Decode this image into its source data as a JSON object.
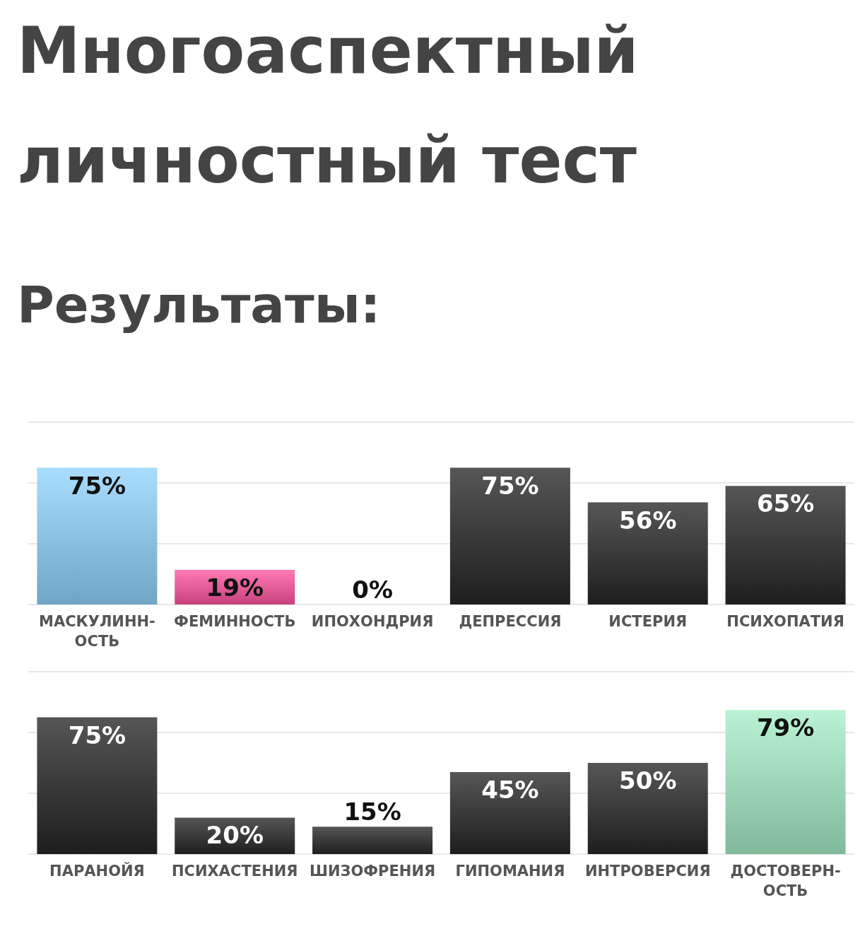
{
  "chart_data": [
    {
      "type": "bar",
      "title": "Многоаспектный личностный тест",
      "subtitle": "Результаты:",
      "categories": [
        "МАСКУЛИНН-ОСТЬ",
        "ФЕМИННОСТЬ",
        "ИПОХОНДРИЯ",
        "ДЕПРЕССИЯ",
        "ИСТЕРИЯ",
        "ПСИХОПАТИЯ"
      ],
      "values": [
        75,
        19,
        0,
        75,
        56,
        65
      ],
      "colors": [
        "#8fd3fc",
        "#ff539f",
        "#262626",
        "#262626",
        "#262626",
        "#262626"
      ],
      "value_labels": [
        "75%",
        "19%",
        "0%",
        "75%",
        "56%",
        "65%"
      ],
      "ylim": [
        0,
        100
      ],
      "yticks": [
        {
          "value": 0,
          "label": null
        },
        {
          "value": 33.3,
          "label": null
        },
        {
          "value": 66.7,
          "label": null
        },
        {
          "value": 100,
          "label": null
        }
      ],
      "grid": "y",
      "tick_labels": "x"
    },
    {
      "type": "bar",
      "categories": [
        "ПАРАНОЙЯ",
        "ПСИХАСТЕНИЯ",
        "ШИЗОФРЕНИЯ",
        "ГИПОМАНИЯ",
        "ИНТРОВЕРСИЯ",
        "ДОСТОВЕРН-ОСТЬ"
      ],
      "values": [
        75,
        20,
        15,
        45,
        50,
        79
      ],
      "colors": [
        "#262626",
        "#262626",
        "#262626",
        "#262626",
        "#262626",
        "#a6efc6"
      ],
      "value_labels": [
        "75%",
        "20%",
        "15%",
        "45%",
        "50%",
        "79%"
      ],
      "ylim": [
        0,
        100
      ],
      "yticks": [
        {
          "value": 0,
          "label": null
        },
        {
          "value": 33.3,
          "label": null
        },
        {
          "value": 66.7,
          "label": null
        },
        {
          "value": 100,
          "label": null
        }
      ],
      "grid": "y",
      "tick_labels": "x"
    }
  ]
}
